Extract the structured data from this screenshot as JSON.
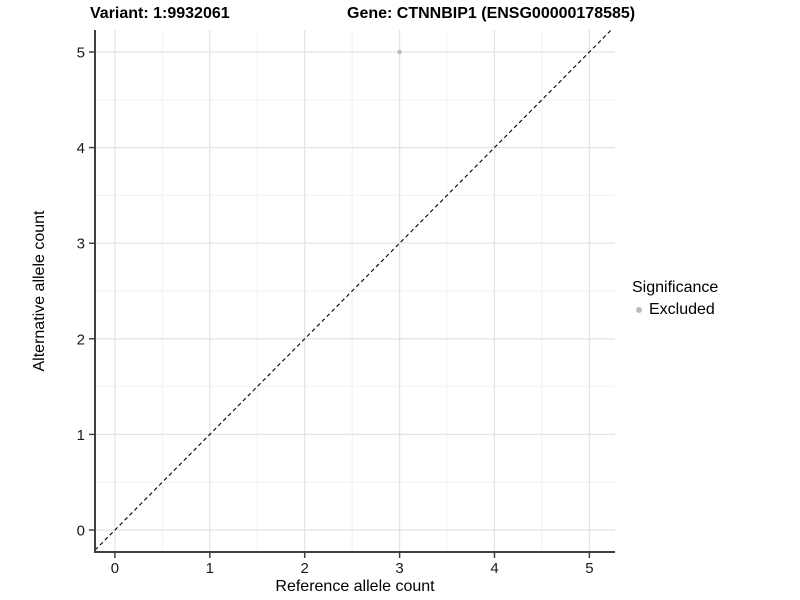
{
  "titles": {
    "variant": "Variant: 1:9932061",
    "gene": "Gene: CTNNBIP1 (ENSG00000178585)"
  },
  "legend": {
    "title": "Significance",
    "items": [
      {
        "label": "Excluded",
        "color": "#bdbdbd"
      }
    ]
  },
  "chart_data": {
    "type": "scatter",
    "xlabel": "Reference allele count",
    "ylabel": "Alternative allele count",
    "x_ticks": [
      0,
      1,
      2,
      3,
      4,
      5
    ],
    "y_ticks": [
      0,
      1,
      2,
      3,
      4,
      5
    ],
    "xlim": [
      -0.21,
      5.27
    ],
    "ylim": [
      -0.23,
      5.23
    ],
    "grid": "major+minor",
    "legend_position": "right",
    "series": [
      {
        "name": "Excluded",
        "color": "#bdbdbd",
        "points": [
          {
            "x": 3,
            "y": 5
          }
        ]
      }
    ],
    "reference_line": {
      "type": "identity",
      "style": "dashed",
      "color": "#000000"
    },
    "colors": {
      "background": "#ffffff",
      "grid_major": "#e4e4e4",
      "grid_minor": "#f2f2f2",
      "axis": "#404040",
      "tick_label": "#1a1a1a"
    }
  }
}
